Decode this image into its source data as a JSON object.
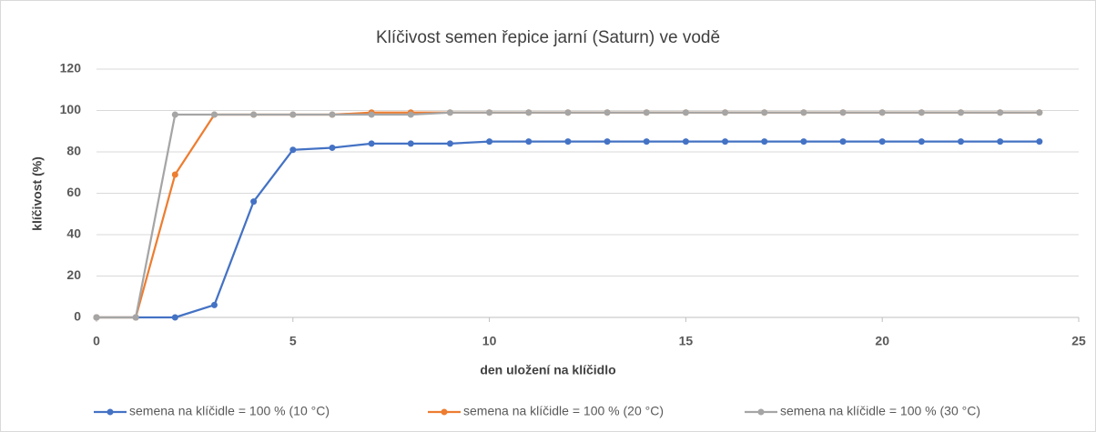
{
  "chart_data": {
    "type": "line",
    "title": "Klíčivost semen řepice jarní (Saturn) ve vodě",
    "x_label": "den uložení na klíčidlo",
    "y_label": "klíčivost (%)",
    "x": [
      0,
      1,
      2,
      3,
      4,
      5,
      6,
      7,
      8,
      9,
      10,
      11,
      12,
      13,
      14,
      15,
      16,
      17,
      18,
      19,
      20,
      21,
      22,
      23,
      24
    ],
    "series": [
      {
        "name": "semena na klíčidle = 100 % (10 °C)",
        "color": "#4472c4",
        "values": [
          0,
          0,
          0,
          6,
          56,
          81,
          82,
          84,
          84,
          84,
          85,
          85,
          85,
          85,
          85,
          85,
          85,
          85,
          85,
          85,
          85,
          85,
          85,
          85,
          85
        ]
      },
      {
        "name": "semena na klíčidle = 100 % (20 °C)",
        "color": "#ed7d31",
        "values": [
          0,
          0,
          69,
          98,
          98,
          98,
          98,
          99,
          99,
          99,
          99,
          99,
          99,
          99,
          99,
          99,
          99,
          99,
          99,
          99,
          99,
          99,
          99,
          99,
          99
        ]
      },
      {
        "name": "semena na klíčidle = 100 % (30 °C)",
        "color": "#a5a5a5",
        "values": [
          0,
          0,
          98,
          98,
          98,
          98,
          98,
          98,
          98,
          99,
          99,
          99,
          99,
          99,
          99,
          99,
          99,
          99,
          99,
          99,
          99,
          99,
          99,
          99,
          99
        ]
      }
    ],
    "xlim": [
      0,
      25
    ],
    "xticks": [
      0,
      5,
      10,
      15,
      20,
      25
    ],
    "ylim": [
      0,
      120
    ],
    "yticks": [
      0,
      20,
      40,
      60,
      80,
      100,
      120
    ],
    "grid": true,
    "legend": "bottom"
  }
}
